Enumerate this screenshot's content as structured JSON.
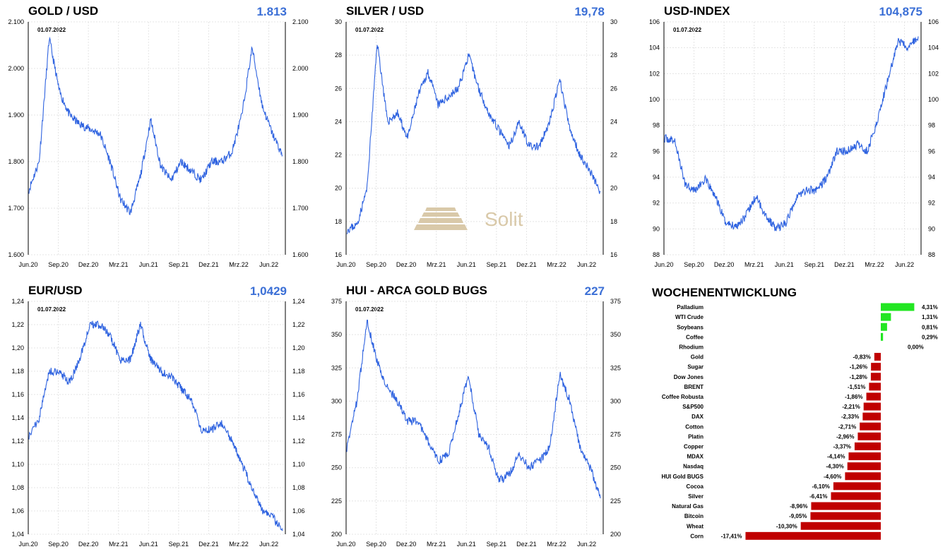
{
  "charts": [
    {
      "id": "gold",
      "title": "GOLD / USD",
      "value": "1.813",
      "date_note": "01.07.2022",
      "ylim": [
        1600,
        2100
      ],
      "yticks": [
        1600,
        1700,
        1800,
        1900,
        2000,
        2100
      ],
      "ytick_labels": [
        "1.600",
        "1.700",
        "1.800",
        "1.900",
        "2.000",
        "2.100"
      ]
    },
    {
      "id": "silver",
      "title": "SILVER / USD",
      "value": "19,78",
      "date_note": "01.07.2022",
      "ylim": [
        16,
        30
      ],
      "yticks": [
        16,
        18,
        20,
        22,
        24,
        26,
        28,
        30
      ],
      "ytick_labels": [
        "16",
        "18",
        "20",
        "22",
        "24",
        "26",
        "28",
        "30"
      ]
    },
    {
      "id": "usdindex",
      "title": "USD-INDEX",
      "value": "104,875",
      "date_note": "01.07.2022",
      "ylim": [
        88,
        106
      ],
      "yticks": [
        88,
        90,
        92,
        94,
        96,
        98,
        100,
        102,
        104,
        106
      ],
      "ytick_labels": [
        "88",
        "90",
        "92",
        "94",
        "96",
        "98",
        "100",
        "102",
        "104",
        "106"
      ]
    },
    {
      "id": "eurusd",
      "title": "EUR/USD",
      "value": "1,0429",
      "date_note": "01.07.2022",
      "ylim": [
        1.04,
        1.24
      ],
      "yticks": [
        1.04,
        1.06,
        1.08,
        1.1,
        1.12,
        1.14,
        1.16,
        1.18,
        1.2,
        1.22,
        1.24
      ],
      "ytick_labels": [
        "1,04",
        "1,06",
        "1,08",
        "1,10",
        "1,12",
        "1,14",
        "1,16",
        "1,18",
        "1,20",
        "1,22",
        "1,24"
      ]
    },
    {
      "id": "hui",
      "title": "HUI - ARCA GOLD BUGS",
      "value": "227",
      "date_note": "01.07.2022",
      "ylim": [
        200,
        375
      ],
      "yticks": [
        200,
        225,
        250,
        275,
        300,
        325,
        350,
        375
      ],
      "ytick_labels": [
        "200",
        "225",
        "250",
        "275",
        "300",
        "325",
        "350",
        "375"
      ]
    }
  ],
  "xtick_labels": [
    "Jun.20",
    "Sep.20",
    "Dez.20",
    "Mrz.21",
    "Jun.21",
    "Sep.21",
    "Dez.21",
    "Mrz.22",
    "Jun.22"
  ],
  "watermark": "Solit",
  "colors": {
    "line": "#2f63e0",
    "value_text": "#3b6fd6",
    "positive": "#22e622",
    "negative": "#c00000",
    "grid": "#e4e4e4"
  },
  "chart_data": [
    {
      "type": "line",
      "title": "GOLD / USD",
      "x": [
        "Jun.20",
        "Jul.20",
        "Aug.20",
        "Sep.20",
        "Okt.20",
        "Nov.20",
        "Dez.20",
        "Jan.21",
        "Feb.21",
        "Mrz.21",
        "Apr.21",
        "Mai.21",
        "Jun.21",
        "Jul.21",
        "Aug.21",
        "Sep.21",
        "Okt.21",
        "Nov.21",
        "Dez.21",
        "Jan.22",
        "Feb.22",
        "Mrz.22",
        "Apr.22",
        "Mai.22",
        "Jun.22",
        "Jul.22"
      ],
      "y": [
        1740,
        1800,
        2065,
        1950,
        1900,
        1880,
        1870,
        1860,
        1800,
        1720,
        1690,
        1770,
        1890,
        1790,
        1760,
        1800,
        1780,
        1760,
        1800,
        1800,
        1820,
        1900,
        2045,
        1920,
        1860,
        1813
      ],
      "ylim": [
        1600,
        2100
      ]
    },
    {
      "type": "line",
      "title": "SILVER / USD",
      "x": [
        "Jun.20",
        "Jul.20",
        "Aug.20",
        "Sep.20",
        "Okt.20",
        "Nov.20",
        "Dez.20",
        "Jan.21",
        "Feb.21",
        "Mrz.21",
        "Apr.21",
        "Mai.21",
        "Jun.21",
        "Jul.21",
        "Aug.21",
        "Sep.21",
        "Okt.21",
        "Nov.21",
        "Dez.21",
        "Jan.22",
        "Feb.22",
        "Mrz.22",
        "Apr.22",
        "Mai.22",
        "Jun.22",
        "Jul.22"
      ],
      "y": [
        17.5,
        17.8,
        20,
        28.8,
        24,
        24.5,
        23,
        25.5,
        27,
        25,
        25.5,
        26,
        28,
        26,
        24.5,
        23.5,
        22.5,
        24,
        22.5,
        22.5,
        24,
        26.5,
        23.5,
        22,
        21,
        19.78
      ],
      "ylim": [
        16,
        30
      ]
    },
    {
      "type": "line",
      "title": "USD-INDEX",
      "x": [
        "Jun.20",
        "Jul.20",
        "Aug.20",
        "Sep.20",
        "Okt.20",
        "Nov.20",
        "Dez.20",
        "Jan.21",
        "Feb.21",
        "Mrz.21",
        "Apr.21",
        "Mai.21",
        "Jun.21",
        "Jul.21",
        "Aug.21",
        "Sep.21",
        "Okt.21",
        "Nov.21",
        "Dez.21",
        "Jan.22",
        "Feb.22",
        "Mrz.22",
        "Apr.22",
        "Mai.22",
        "Jun.22",
        "Jul.22"
      ],
      "y": [
        97,
        96.8,
        93.5,
        93,
        93.8,
        92.5,
        90.5,
        90.2,
        91,
        92.5,
        91,
        90,
        90.5,
        92.5,
        93,
        93,
        94,
        96,
        96,
        96.5,
        96,
        98.5,
        101.5,
        104.5,
        104,
        104.875
      ],
      "ylim": [
        88,
        106
      ]
    },
    {
      "type": "line",
      "title": "EUR/USD",
      "x": [
        "Jun.20",
        "Jul.20",
        "Aug.20",
        "Sep.20",
        "Okt.20",
        "Nov.20",
        "Dez.20",
        "Jan.21",
        "Feb.21",
        "Mrz.21",
        "Apr.21",
        "Mai.21",
        "Jun.21",
        "Jul.21",
        "Aug.21",
        "Sep.21",
        "Okt.21",
        "Nov.21",
        "Dez.21",
        "Jan.22",
        "Feb.22",
        "Mrz.22",
        "Apr.22",
        "Mai.22",
        "Jun.22",
        "Jul.22"
      ],
      "y": [
        1.125,
        1.14,
        1.18,
        1.18,
        1.17,
        1.19,
        1.22,
        1.22,
        1.21,
        1.19,
        1.19,
        1.22,
        1.19,
        1.18,
        1.175,
        1.165,
        1.155,
        1.13,
        1.13,
        1.135,
        1.12,
        1.1,
        1.08,
        1.06,
        1.055,
        1.0429
      ],
      "ylim": [
        1.04,
        1.24
      ]
    },
    {
      "type": "line",
      "title": "HUI - ARCA GOLD BUGS",
      "x": [
        "Jun.20",
        "Jul.20",
        "Aug.20",
        "Sep.20",
        "Okt.20",
        "Nov.20",
        "Dez.20",
        "Jan.21",
        "Feb.21",
        "Mrz.21",
        "Apr.21",
        "Mai.21",
        "Jun.21",
        "Jul.21",
        "Aug.21",
        "Sep.21",
        "Okt.21",
        "Nov.21",
        "Dez.21",
        "Jan.22",
        "Feb.22",
        "Mrz.22",
        "Apr.22",
        "Mai.22",
        "Jun.22",
        "Jul.22"
      ],
      "y": [
        265,
        300,
        360,
        330,
        310,
        300,
        285,
        285,
        270,
        255,
        260,
        290,
        320,
        275,
        265,
        240,
        245,
        260,
        250,
        255,
        265,
        320,
        300,
        265,
        250,
        227
      ],
      "ylim": [
        200,
        375
      ]
    },
    {
      "type": "bar",
      "title": "WOCHENENTWICKLUNG",
      "orientation": "horizontal",
      "categories": [
        "Palladium",
        "WTI Crude",
        "Soybeans",
        "Coffee",
        "Rhodium",
        "Gold",
        "Sugar",
        "Dow Jones",
        "BRENT",
        "Coffee Robusta",
        "S&P500",
        "DAX",
        "Cotton",
        "Platin",
        "Copper",
        "MDAX",
        "Nasdaq",
        "HUI Gold BUGS",
        "Cocoa",
        "Silver",
        "Natural Gas",
        "Bitcoin",
        "Wheat",
        "Corn"
      ],
      "values": [
        4.31,
        1.31,
        0.81,
        0.29,
        0.0,
        -0.83,
        -1.26,
        -1.28,
        -1.51,
        -1.86,
        -2.21,
        -2.33,
        -2.71,
        -2.96,
        -3.37,
        -4.14,
        -4.3,
        -4.6,
        -6.1,
        -6.41,
        -8.96,
        -9.05,
        -10.3,
        -17.41
      ],
      "labels": [
        "4,31%",
        "1,31%",
        "0,81%",
        "0,29%",
        "0,00%",
        "-0,83%",
        "-1,26%",
        "-1,28%",
        "-1,51%",
        "-1,86%",
        "-2,21%",
        "-2,33%",
        "-2,71%",
        "-2,96%",
        "-3,37%",
        "-4,14%",
        "-4,30%",
        "-4,60%",
        "-6,10%",
        "-6,41%",
        "-8,96%",
        "-9,05%",
        "-10,30%",
        "-17,41%"
      ]
    }
  ],
  "weekly_title": "WOCHENENTWICKLUNG"
}
